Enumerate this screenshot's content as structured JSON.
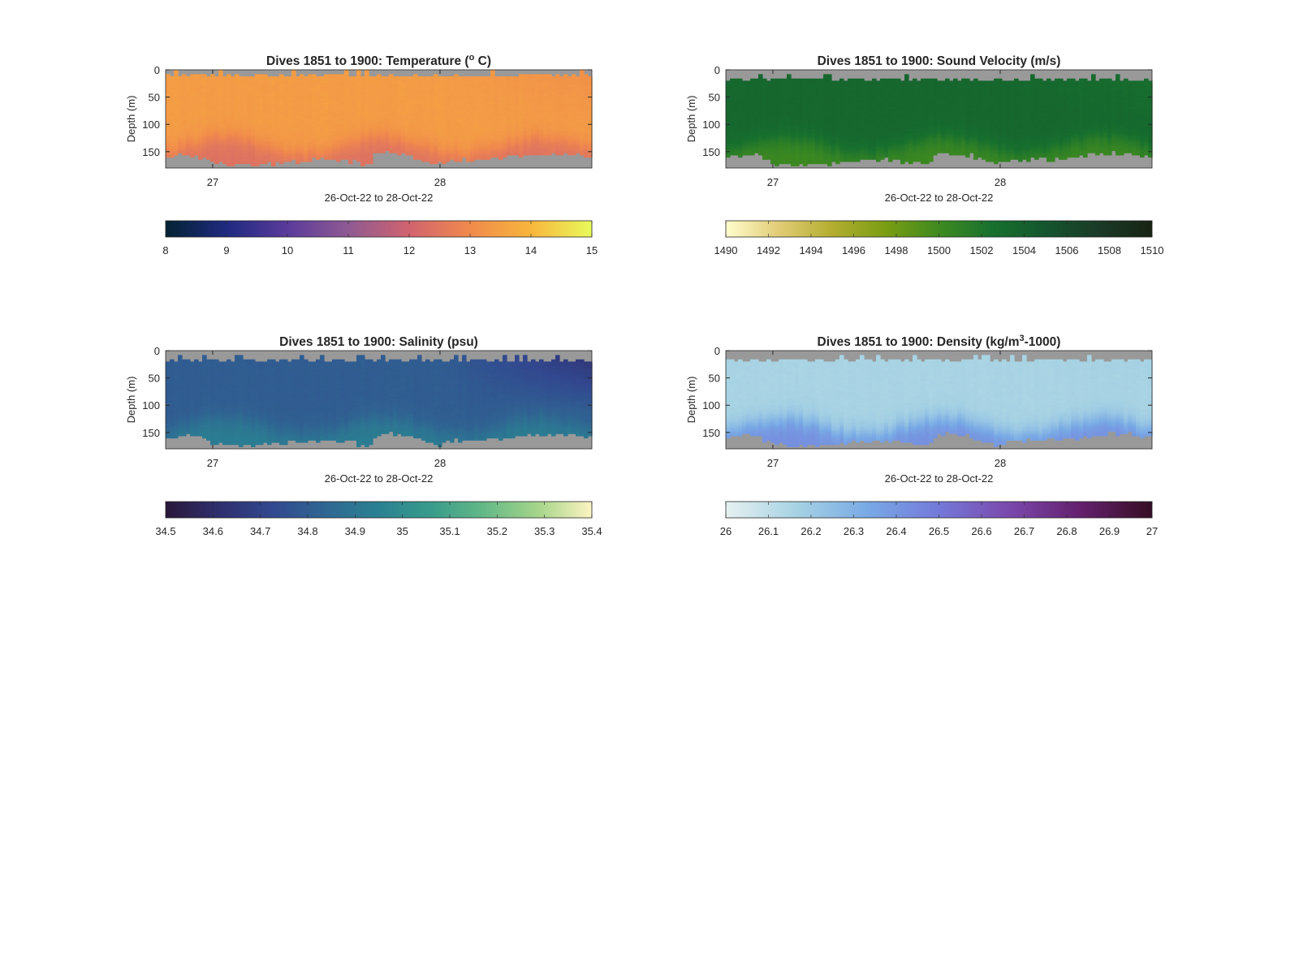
{
  "chart_data": [
    {
      "type": "heatmap",
      "title": "Dives 1851 to 1900: Temperature (",
      "title_sup": "o",
      "title_after": " C)",
      "xlabel": "26-Oct-22 to 28-Oct-22",
      "ylabel": "Depth (m)",
      "xlim": [
        26.793,
        28.668
      ],
      "ylim": [
        0,
        180
      ],
      "xticks": [
        27,
        28
      ],
      "xtick_labels": [
        "27",
        "28"
      ],
      "yticks": [
        0,
        50,
        100,
        150
      ],
      "ytick_labels": [
        "0",
        "50",
        "100",
        "150"
      ],
      "colorbar": {
        "range": [
          8,
          15
        ],
        "ticks": [
          8,
          9,
          10,
          11,
          12,
          13,
          14,
          15
        ],
        "tick_labels": [
          "8",
          "9",
          "10",
          "11",
          "12",
          "13",
          "14",
          "15"
        ],
        "colors": [
          "#042333",
          "#1f2a80",
          "#5a3b9b",
          "#8e5a92",
          "#d1636f",
          "#f08a4c",
          "#f8b63c",
          "#e8fa5b"
        ]
      },
      "surface_value": 13.4,
      "surface_value_late": 13.15,
      "deep_value": 12.4,
      "top_gap": 9,
      "nan_color": "#999999"
    },
    {
      "type": "heatmap",
      "title": "Dives 1851 to 1900: Sound Velocity (m/s)",
      "title_sup": "",
      "title_after": "",
      "xlabel": "26-Oct-22 to 28-Oct-22",
      "ylabel": "Depth (m)",
      "xlim": [
        26.793,
        28.668
      ],
      "ylim": [
        0,
        180
      ],
      "xticks": [
        27,
        28
      ],
      "xtick_labels": [
        "27",
        "28"
      ],
      "yticks": [
        0,
        50,
        100,
        150
      ],
      "ytick_labels": [
        "0",
        "50",
        "100",
        "150"
      ],
      "colorbar": {
        "range": [
          1490,
          1510
        ],
        "ticks": [
          1490,
          1492,
          1494,
          1496,
          1498,
          1500,
          1502,
          1504,
          1506,
          1508,
          1510
        ],
        "tick_labels": [
          "1490",
          "1492",
          "1494",
          "1496",
          "1498",
          "1500",
          "1502",
          "1504",
          "1506",
          "1508",
          "1510"
        ],
        "colors": [
          "#fffdcd",
          "#e1cc76",
          "#b3ad30",
          "#7a9d13",
          "#3f8a20",
          "#17702e",
          "#14552e",
          "#1b3a27",
          "#172313"
        ]
      },
      "surface_value": 1503.3,
      "surface_value_late": 1502.6,
      "deep_value": 1500.2,
      "top_gap": 17,
      "nan_color": "#999999"
    },
    {
      "type": "heatmap",
      "title": "Dives 1851 to 1900: Salinity (psu)",
      "title_sup": "",
      "title_after": "",
      "xlabel": "26-Oct-22 to 28-Oct-22",
      "ylabel": "Depth (m)",
      "xlim": [
        26.793,
        28.668
      ],
      "ylim": [
        0,
        180
      ],
      "xticks": [
        27,
        28
      ],
      "xtick_labels": [
        "27",
        "28"
      ],
      "yticks": [
        0,
        50,
        100,
        150
      ],
      "ytick_labels": [
        "0",
        "50",
        "100",
        "150"
      ],
      "colorbar": {
        "range": [
          34.5,
          35.4
        ],
        "ticks": [
          34.5,
          34.6,
          34.7,
          34.8,
          34.9,
          35,
          35.1,
          35.2,
          35.3,
          35.4
        ],
        "tick_labels": [
          "34.5",
          "34.6",
          "34.7",
          "34.8",
          "34.9",
          "35",
          "35.1",
          "35.2",
          "35.3",
          "35.4"
        ],
        "colors": [
          "#29183a",
          "#2f2f6e",
          "#32488f",
          "#2f6792",
          "#2a8192",
          "#399c8b",
          "#65b987",
          "#a6d58a",
          "#fdf4c2"
        ]
      },
      "surface_value": 34.8,
      "surface_value_late": 34.62,
      "deep_value": 34.93,
      "top_gap": 17,
      "nan_color": "#999999"
    },
    {
      "type": "heatmap",
      "title": "Dives 1851 to 1900: Density (kg/m",
      "title_sup": "3",
      "title_after": "-1000)",
      "xlabel": "26-Oct-22 to 28-Oct-22",
      "ylabel": "Depth (m)",
      "xlim": [
        26.793,
        28.668
      ],
      "ylim": [
        0,
        180
      ],
      "xticks": [
        27,
        28
      ],
      "xtick_labels": [
        "27",
        "28"
      ],
      "yticks": [
        0,
        50,
        100,
        150
      ],
      "ytick_labels": [
        "0",
        "50",
        "100",
        "150"
      ],
      "colorbar": {
        "range": [
          26,
          27
        ],
        "ticks": [
          26,
          26.1,
          26.2,
          26.3,
          26.4,
          26.5,
          26.6,
          26.7,
          26.8,
          26.9,
          27
        ],
        "tick_labels": [
          "26",
          "26.1",
          "26.2",
          "26.3",
          "26.4",
          "26.5",
          "26.6",
          "26.7",
          "26.8",
          "26.9",
          "27"
        ],
        "colors": [
          "#e6f1f1",
          "#a6d2e3",
          "#78a9e5",
          "#7479d9",
          "#7a48ab",
          "#63206d",
          "#360e24"
        ]
      },
      "surface_value": 26.16,
      "surface_value_late": 26.17,
      "deep_value": 26.42,
      "top_gap": 17,
      "nan_color": "#999999"
    }
  ],
  "bottom_depth_profile": {
    "time": [
      26.79,
      26.85,
      26.92,
      27.0,
      27.1,
      27.25,
      27.4,
      27.5,
      27.6,
      27.69,
      27.72,
      27.85,
      27.98,
      28.05,
      28.2,
      28.35,
      28.5,
      28.6,
      28.67
    ],
    "depth": [
      160,
      162,
      158,
      175,
      178,
      176,
      170,
      168,
      172,
      178,
      155,
      158,
      178,
      170,
      168,
      163,
      156,
      158,
      163
    ]
  }
}
